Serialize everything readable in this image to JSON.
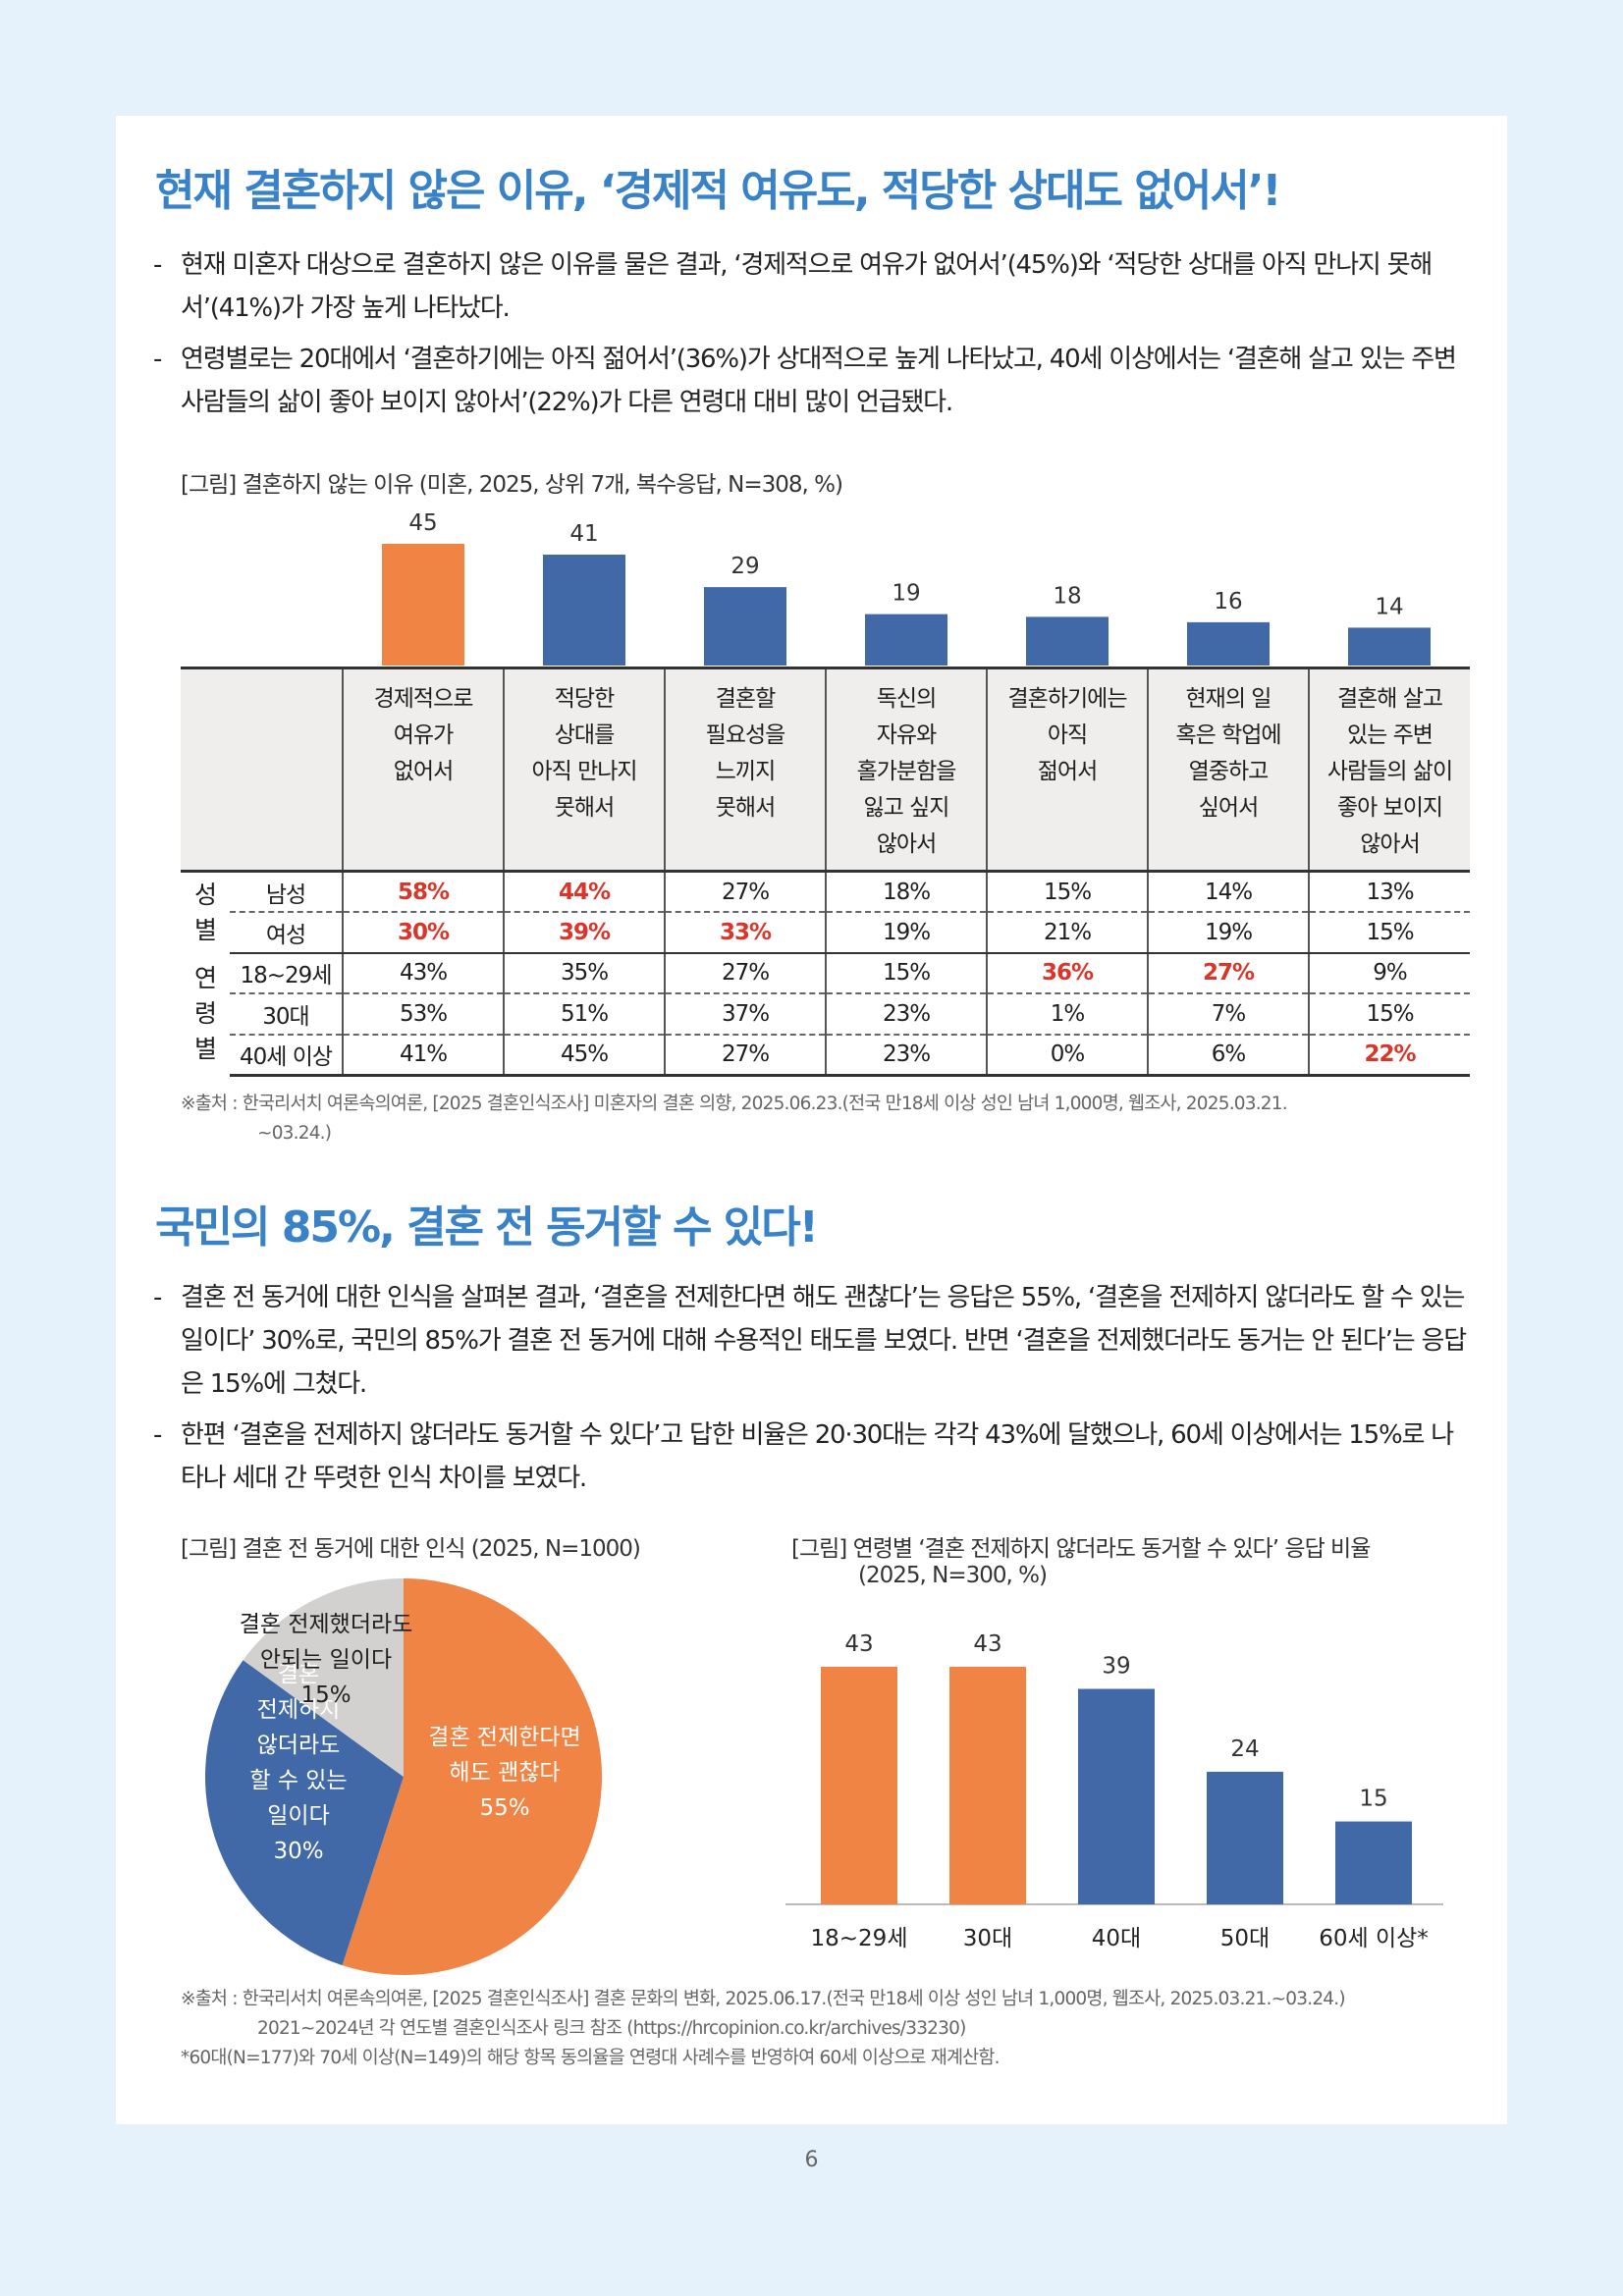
{
  "section1": {
    "title": "현재 결혼하지 않은 이유, ‘경제적 여유도, 적당한 상대도 없어서’!",
    "bullets": [
      "현재 미혼자 대상으로 결혼하지 않은 이유를 물은 결과, ‘경제적으로 여유가 없어서’(45%)와 ‘적당한 상대를 아직 만나지 못해서’(41%)가 가장 높게 나타났다.",
      "연령별로는 20대에서 ‘결혼하기에는 아직 젊어서’(36%)가 상대적으로 높게 나타났고, 40세 이상에서는 ‘결혼해 살고 있는 주변 사람들의 삶이 좋아 보이지 않아서’(22%)가 다른 연령대 대비 많이 언급됐다."
    ],
    "figure_caption": "[그림] 결혼하지 않는 이유 (미혼, 2025, 상위 7개, 복수응답, N=308, %)",
    "source": "※출처 : 한국리서치 여론속의여론, [2025 결혼인식조사] 미혼자의 결혼 의향, 2025.06.23.(전국 만18세 이상 성인 남녀 1,000명, 웹조사, 2025.03.21.",
    "source_cont": "~03.24.)"
  },
  "table": {
    "groups": [
      {
        "label": "성\n별",
        "rows": [
          {
            "label": "남성",
            "cells": [
              "58%",
              "44%",
              "27%",
              "18%",
              "15%",
              "14%",
              "13%"
            ],
            "hi": [
              0,
              1
            ]
          },
          {
            "label": "여성",
            "cells": [
              "30%",
              "39%",
              "33%",
              "19%",
              "21%",
              "19%",
              "15%"
            ],
            "hi": [
              0,
              1,
              2
            ]
          }
        ]
      },
      {
        "label": "연\n령\n별",
        "rows": [
          {
            "label": "18~29세",
            "cells": [
              "43%",
              "35%",
              "27%",
              "15%",
              "36%",
              "27%",
              "9%"
            ],
            "hi": [
              4,
              5
            ]
          },
          {
            "label": "30대",
            "cells": [
              "53%",
              "51%",
              "37%",
              "23%",
              "1%",
              "7%",
              "15%"
            ],
            "hi": []
          },
          {
            "label": "40세 이상",
            "cells": [
              "41%",
              "45%",
              "27%",
              "23%",
              "0%",
              "6%",
              "22%"
            ],
            "hi": [
              6
            ]
          }
        ]
      }
    ]
  },
  "section2": {
    "title": "국민의 85%, 결혼 전 동거할 수 있다!",
    "bullets": [
      "결혼 전 동거에 대한 인식을 살펴본 결과, ‘결혼을 전제한다면 해도 괜찮다’는 응답은 55%, ‘결혼을 전제하지 않더라도 할 수 있는 일이다’ 30%로, 국민의 85%가 결혼 전 동거에 대해 수용적인 태도를 보였다. 반면 ‘결혼을 전제했더라도 동거는 안 된다’는 응답은 15%에 그쳤다.",
      "한편 ‘결혼을 전제하지 않더라도 동거할 수 있다’고 답한 비율은 20·30대는 각각 43%에 달했으나, 60세 이상에서는 15%로 나타나 세대 간 뚜렷한 인식 차이를 보였다."
    ],
    "pie_caption": "[그림] 결혼 전 동거에 대한 인식 (2025, N=1000)",
    "bar_caption_1": "[그림] 연령별 ‘결혼 전제하지 않더라도 동거할 수 있다’ 응답 비율",
    "bar_caption_2": "(2025, N=300, %)",
    "source_lines": [
      "※출처 : 한국리서치 여론속의여론, [2025 결혼인식조사] 결혼 문화의 변화, 2025.06.17.(전국 만18세 이상 성인 남녀 1,000명, 웹조사, 2025.03.21.~03.24.)",
      "2021~2024년 각 연도별 결혼인식조사 링크 참조 (https://hrcopinion.co.kr/archives/33230)",
      "*60대(N=177)와 70세 이상(N=149)의 해당 항목 동의율을 연령대 사례수를 반영하여 60세 이상으로 재계산함."
    ]
  },
  "page_number": "6",
  "chart_data": [
    {
      "type": "bar",
      "categories": [
        "경제적으로 여유가 없어서",
        "적당한 상대를 아직 만나지 못해서",
        "결혼할 필요성을 느끼지 못해서",
        "독신의 자유와 홀가분함을 잃고 싶지 않아서",
        "결혼하기에는 아직 젊어서",
        "현재의 일 혹은 학업에 열중하고 싶어서",
        "결혼해 살고 있는 주변 사람들의 삶이 좋아 보이지 않아서"
      ],
      "category_labels": [
        "경제적으로\n여유가\n없어서",
        "적당한\n상대를\n아직 만나지\n못해서",
        "결혼할\n필요성을\n느끼지\n못해서",
        "독신의\n자유와\n홀가분함을\n잃고 싶지\n않아서",
        "결혼하기에는\n아직\n젊어서",
        "현재의 일\n혹은 학업에\n열중하고\n싶어서",
        "결혼해 살고\n있는 주변\n사람들의 삶이\n좋아 보이지\n않아서"
      ],
      "values": [
        45,
        41,
        29,
        19,
        18,
        16,
        14
      ],
      "colors": [
        "#f08445",
        "#4169a8",
        "#4169a8",
        "#4169a8",
        "#4169a8",
        "#4169a8",
        "#4169a8"
      ],
      "ylim": [
        0,
        45
      ]
    },
    {
      "type": "pie",
      "labels": [
        "결혼 전제한다면 해도 괜찮다",
        "결혼 전제하지 않더라도 할 수 있는 일이다",
        "결혼 전제했더라도 안되는 일이다"
      ],
      "values": [
        55,
        30,
        15
      ],
      "colors": [
        "#f08445",
        "#4169a8",
        "#d3d1cf"
      ],
      "label_lines": [
        [
          "결혼 전제한다면",
          "해도 괜찮다",
          "55%"
        ],
        [
          "결혼",
          "전제하지",
          "않더라도",
          "할 수 있는",
          "일이다",
          "30%"
        ],
        [
          "결혼 전제했더라도",
          "안되는 일이다",
          "15%"
        ]
      ]
    },
    {
      "type": "bar",
      "categories": [
        "18~29세",
        "30대",
        "40대",
        "50대",
        "60세 이상*"
      ],
      "values": [
        43,
        43,
        39,
        24,
        15
      ],
      "colors": [
        "#f08445",
        "#f08445",
        "#4169a8",
        "#4169a8",
        "#4169a8"
      ],
      "ylim": [
        0,
        43
      ]
    }
  ]
}
